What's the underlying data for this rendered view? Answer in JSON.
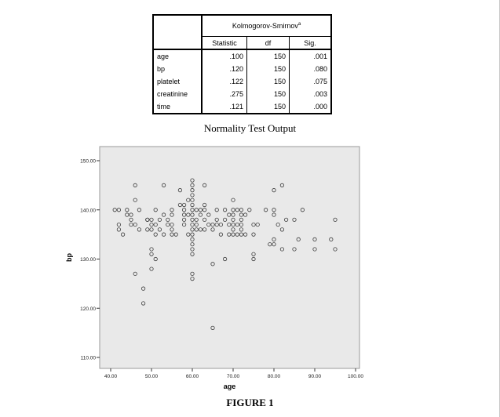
{
  "table": {
    "group_header": "Kolmogorov-Smirnov",
    "group_header_sup": "a",
    "columns": [
      "Statistic",
      "df",
      "Sig."
    ],
    "rows": [
      {
        "label": "age",
        "statistic": ".100",
        "df": "150",
        "sig": ".001"
      },
      {
        "label": "bp",
        "statistic": ".120",
        "df": "150",
        "sig": ".080"
      },
      {
        "label": "platelet",
        "statistic": ".122",
        "df": "150",
        "sig": ".075"
      },
      {
        "label": "creatinine",
        "statistic": ".275",
        "df": "150",
        "sig": ".003"
      },
      {
        "label": "time",
        "statistic": ".121",
        "df": "150",
        "sig": ".000"
      }
    ]
  },
  "table_caption": "Normality Test Output",
  "figure_caption": "FIGURE 1",
  "colors": {
    "plot_background": "#e9e9e9",
    "point_stroke": "#3a3a3a"
  },
  "chart_data": {
    "type": "scatter",
    "xlabel": "age",
    "ylabel": "bp",
    "xlim": [
      40,
      100
    ],
    "ylim": [
      110,
      150
    ],
    "xticks": [
      "40.00",
      "50.00",
      "60.00",
      "70.00",
      "80.00",
      "90.00",
      "100.00"
    ],
    "yticks": [
      "110.00",
      "120.00",
      "130.00",
      "140.00",
      "150.00"
    ],
    "grid": false,
    "points": [
      [
        41,
        140
      ],
      [
        42,
        140
      ],
      [
        42,
        137
      ],
      [
        42,
        136
      ],
      [
        43,
        135
      ],
      [
        44,
        139
      ],
      [
        45,
        138
      ],
      [
        45,
        139
      ],
      [
        45,
        137
      ],
      [
        46,
        145
      ],
      [
        46,
        142
      ],
      [
        46,
        137
      ],
      [
        47,
        140
      ],
      [
        48,
        124
      ],
      [
        46,
        127
      ],
      [
        49,
        138
      ],
      [
        49,
        136
      ],
      [
        50,
        138
      ],
      [
        50,
        137
      ],
      [
        50,
        136
      ],
      [
        50,
        132
      ],
      [
        50,
        131
      ],
      [
        50,
        128
      ],
      [
        51,
        140
      ],
      [
        51,
        137
      ],
      [
        51,
        130
      ],
      [
        52,
        136
      ],
      [
        53,
        145
      ],
      [
        53,
        139
      ],
      [
        53,
        135
      ],
      [
        54,
        138
      ],
      [
        55,
        140
      ],
      [
        55,
        139
      ],
      [
        55,
        137
      ],
      [
        55,
        136
      ],
      [
        55,
        135
      ],
      [
        57,
        144
      ],
      [
        58,
        141
      ],
      [
        58,
        140
      ],
      [
        58,
        139
      ],
      [
        58,
        137
      ],
      [
        59,
        135
      ],
      [
        59,
        142
      ],
      [
        60,
        146
      ],
      [
        60,
        145
      ],
      [
        60,
        143
      ],
      [
        60,
        142
      ],
      [
        60,
        141
      ],
      [
        60,
        140
      ],
      [
        60,
        139
      ],
      [
        60,
        138
      ],
      [
        60,
        137
      ],
      [
        60,
        136
      ],
      [
        60,
        135
      ],
      [
        60,
        134
      ],
      [
        60,
        133
      ],
      [
        60,
        132
      ],
      [
        60,
        131
      ],
      [
        60,
        127
      ],
      [
        60,
        126
      ],
      [
        61,
        140
      ],
      [
        61,
        138
      ],
      [
        61,
        136
      ],
      [
        62,
        140
      ],
      [
        62,
        136
      ],
      [
        63,
        145
      ],
      [
        63,
        140
      ],
      [
        63,
        138
      ],
      [
        63,
        136
      ],
      [
        64,
        137
      ],
      [
        65,
        137
      ],
      [
        65,
        136
      ],
      [
        65,
        129
      ],
      [
        65,
        116
      ],
      [
        66,
        140
      ],
      [
        66,
        138
      ],
      [
        67,
        137
      ],
      [
        68,
        140
      ],
      [
        68,
        138
      ],
      [
        68,
        130
      ],
      [
        69,
        139
      ],
      [
        69,
        135
      ],
      [
        70,
        142
      ],
      [
        70,
        140
      ],
      [
        70,
        139
      ],
      [
        70,
        138
      ],
      [
        70,
        137
      ],
      [
        70,
        136
      ],
      [
        70,
        135
      ],
      [
        72,
        140
      ],
      [
        72,
        139
      ],
      [
        72,
        138
      ],
      [
        72,
        137
      ],
      [
        72,
        136
      ],
      [
        72,
        135
      ],
      [
        73,
        139
      ],
      [
        73,
        135
      ],
      [
        75,
        137
      ],
      [
        75,
        135
      ],
      [
        75,
        131
      ],
      [
        75,
        130
      ],
      [
        79,
        133
      ],
      [
        80,
        133
      ],
      [
        80,
        134
      ],
      [
        80,
        144
      ],
      [
        80,
        139
      ],
      [
        81,
        137
      ],
      [
        82,
        145
      ],
      [
        82,
        132
      ],
      [
        82,
        136
      ],
      [
        85,
        138
      ],
      [
        85,
        132
      ],
      [
        86,
        134
      ],
      [
        87,
        140
      ],
      [
        90,
        134
      ],
      [
        90,
        132
      ],
      [
        94,
        134
      ],
      [
        95,
        138
      ],
      [
        95,
        132
      ],
      [
        44,
        140
      ],
      [
        47,
        136
      ],
      [
        49,
        138
      ],
      [
        51,
        135
      ],
      [
        56,
        135
      ],
      [
        58,
        138
      ],
      [
        48,
        121
      ],
      [
        60,
        144
      ],
      [
        62,
        139
      ],
      [
        64,
        139
      ],
      [
        66,
        137
      ],
      [
        69,
        137
      ],
      [
        71,
        140
      ],
      [
        71,
        137
      ],
      [
        71,
        135
      ],
      [
        74,
        140
      ],
      [
        76,
        137
      ],
      [
        78,
        140
      ],
      [
        80,
        140
      ],
      [
        83,
        138
      ],
      [
        52,
        138
      ],
      [
        54,
        137
      ],
      [
        57,
        141
      ],
      [
        59,
        139
      ],
      [
        61,
        137
      ],
      [
        63,
        141
      ],
      [
        67,
        135
      ]
    ]
  }
}
